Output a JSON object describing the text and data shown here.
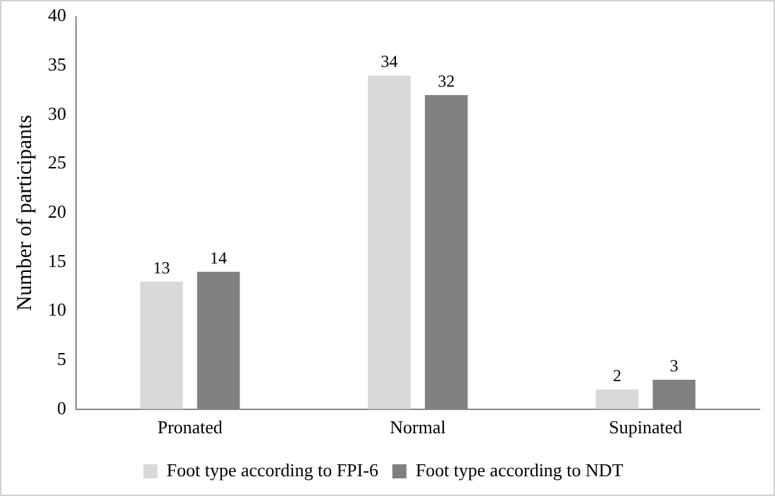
{
  "chart_data": {
    "type": "bar",
    "ylabel": "Number of participants",
    "categories": [
      "Pronated",
      "Normal",
      "Supinated"
    ],
    "series": [
      {
        "name": "Foot type according to FPI-6",
        "color": "#d9d9d9",
        "values": [
          13,
          34,
          2
        ]
      },
      {
        "name": "Foot type according to NDT",
        "color": "#808080",
        "values": [
          14,
          32,
          3
        ]
      }
    ],
    "ylim": [
      0,
      40
    ],
    "yticks": [
      0,
      5,
      10,
      15,
      20,
      25,
      30,
      35,
      40
    ],
    "grid": false,
    "legend": "bottom",
    "data_labels": true
  }
}
